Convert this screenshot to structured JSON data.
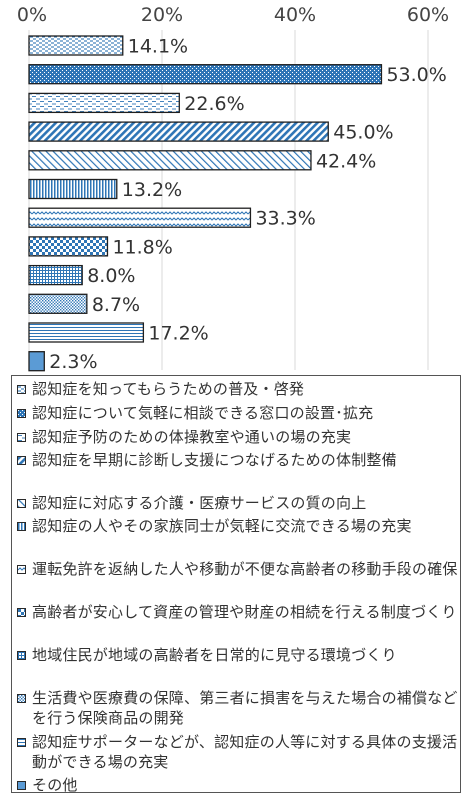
{
  "colors": {
    "bar_border": "#1f1f1f",
    "pattern": "#2e75b6",
    "solid": "#5b9bd5",
    "text": "#333333"
  },
  "chart_data": {
    "type": "bar",
    "orientation": "horizontal",
    "xlim": [
      0,
      60
    ],
    "x_ticks": [
      "0%",
      "20%",
      "40%",
      "60%"
    ],
    "gridlines": true,
    "legend_position": "bottom",
    "values": [
      14.1,
      53.0,
      22.6,
      45.0,
      42.4,
      13.2,
      33.3,
      11.8,
      8.0,
      8.7,
      17.2,
      2.3
    ],
    "value_labels": [
      "14.1%",
      "53.0%",
      "22.6%",
      "45.0%",
      "42.4%",
      "13.2%",
      "33.3%",
      "11.8%",
      "8.0%",
      "8.7%",
      "17.2%",
      "2.3%"
    ],
    "categories": [
      "認知症を知ってもらうための普及・啓発",
      "認知症について気軽に相談できる窓口の設置･拡充",
      "認知症予防のための体操教室や通いの場の充実",
      "認知症を早期に診断し支援につなげるための体制整備",
      "認知症に対応する介護・医療サービスの質の向上",
      "認知症の人やその家族同士が気軽に交流できる場の充実",
      "運転免許を返納した人や移動が不便な高齢者の移動手段の確保",
      "高齢者が安心して資産の管理や財産の相続を行える制度づくり",
      "地域住民が地域の高齢者を日常的に見守る環境づくり",
      "生活費や医療費の保障、第三者に損害を与えた場合の補償などを行う保険商品の開発",
      "認知症サポーターなどが、認知症の人等に対する具体の支援活動ができる場の充実",
      "その他"
    ],
    "patterns": [
      "dash-dense",
      "cross-dark",
      "dash-light",
      "diag-right",
      "diag-light",
      "vertical",
      "zigzag",
      "checker",
      "grid",
      "dots",
      "horizontal",
      "solid"
    ]
  }
}
